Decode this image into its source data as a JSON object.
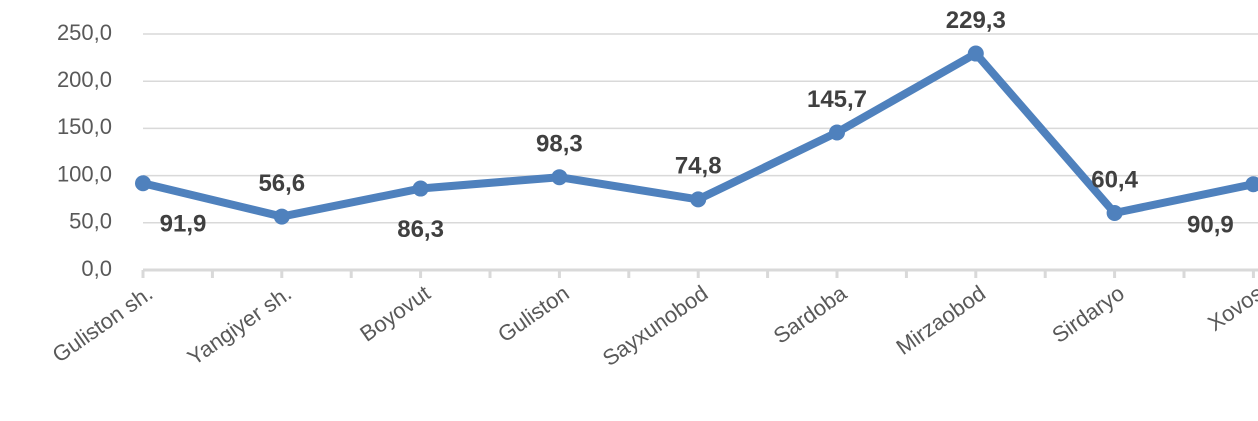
{
  "chart_data": {
    "type": "line",
    "categories": [
      "Guliston sh.",
      "Yangiyer sh.",
      "Boyovut",
      "Guliston",
      "Sayxunobod",
      "Sardoba",
      "Mirzaobod",
      "Sirdaryo",
      "Xovos"
    ],
    "series": [
      {
        "name": null,
        "color": "#4f81bd",
        "values": [
          91.9,
          56.6,
          86.3,
          98.3,
          74.8,
          145.7,
          229.3,
          60.4,
          90.9
        ],
        "value_labels": [
          "91,9",
          "56,6",
          "86,3",
          "98,3",
          "74,8",
          "145,7",
          "229,3",
          "60,4",
          "90,9"
        ],
        "label_positions": [
          "below",
          "above",
          "below",
          "above",
          "above",
          "above",
          "above",
          "above",
          "below"
        ]
      }
    ],
    "ylim": [
      0,
      250
    ],
    "yticks": [
      {
        "value": 0,
        "label": "0,0"
      },
      {
        "value": 50,
        "label": "50,0"
      },
      {
        "value": 100,
        "label": "100,0"
      },
      {
        "value": 150,
        "label": "150,0"
      },
      {
        "value": 200,
        "label": "200,0"
      },
      {
        "value": 250,
        "label": "250,0"
      }
    ],
    "grid": true
  }
}
